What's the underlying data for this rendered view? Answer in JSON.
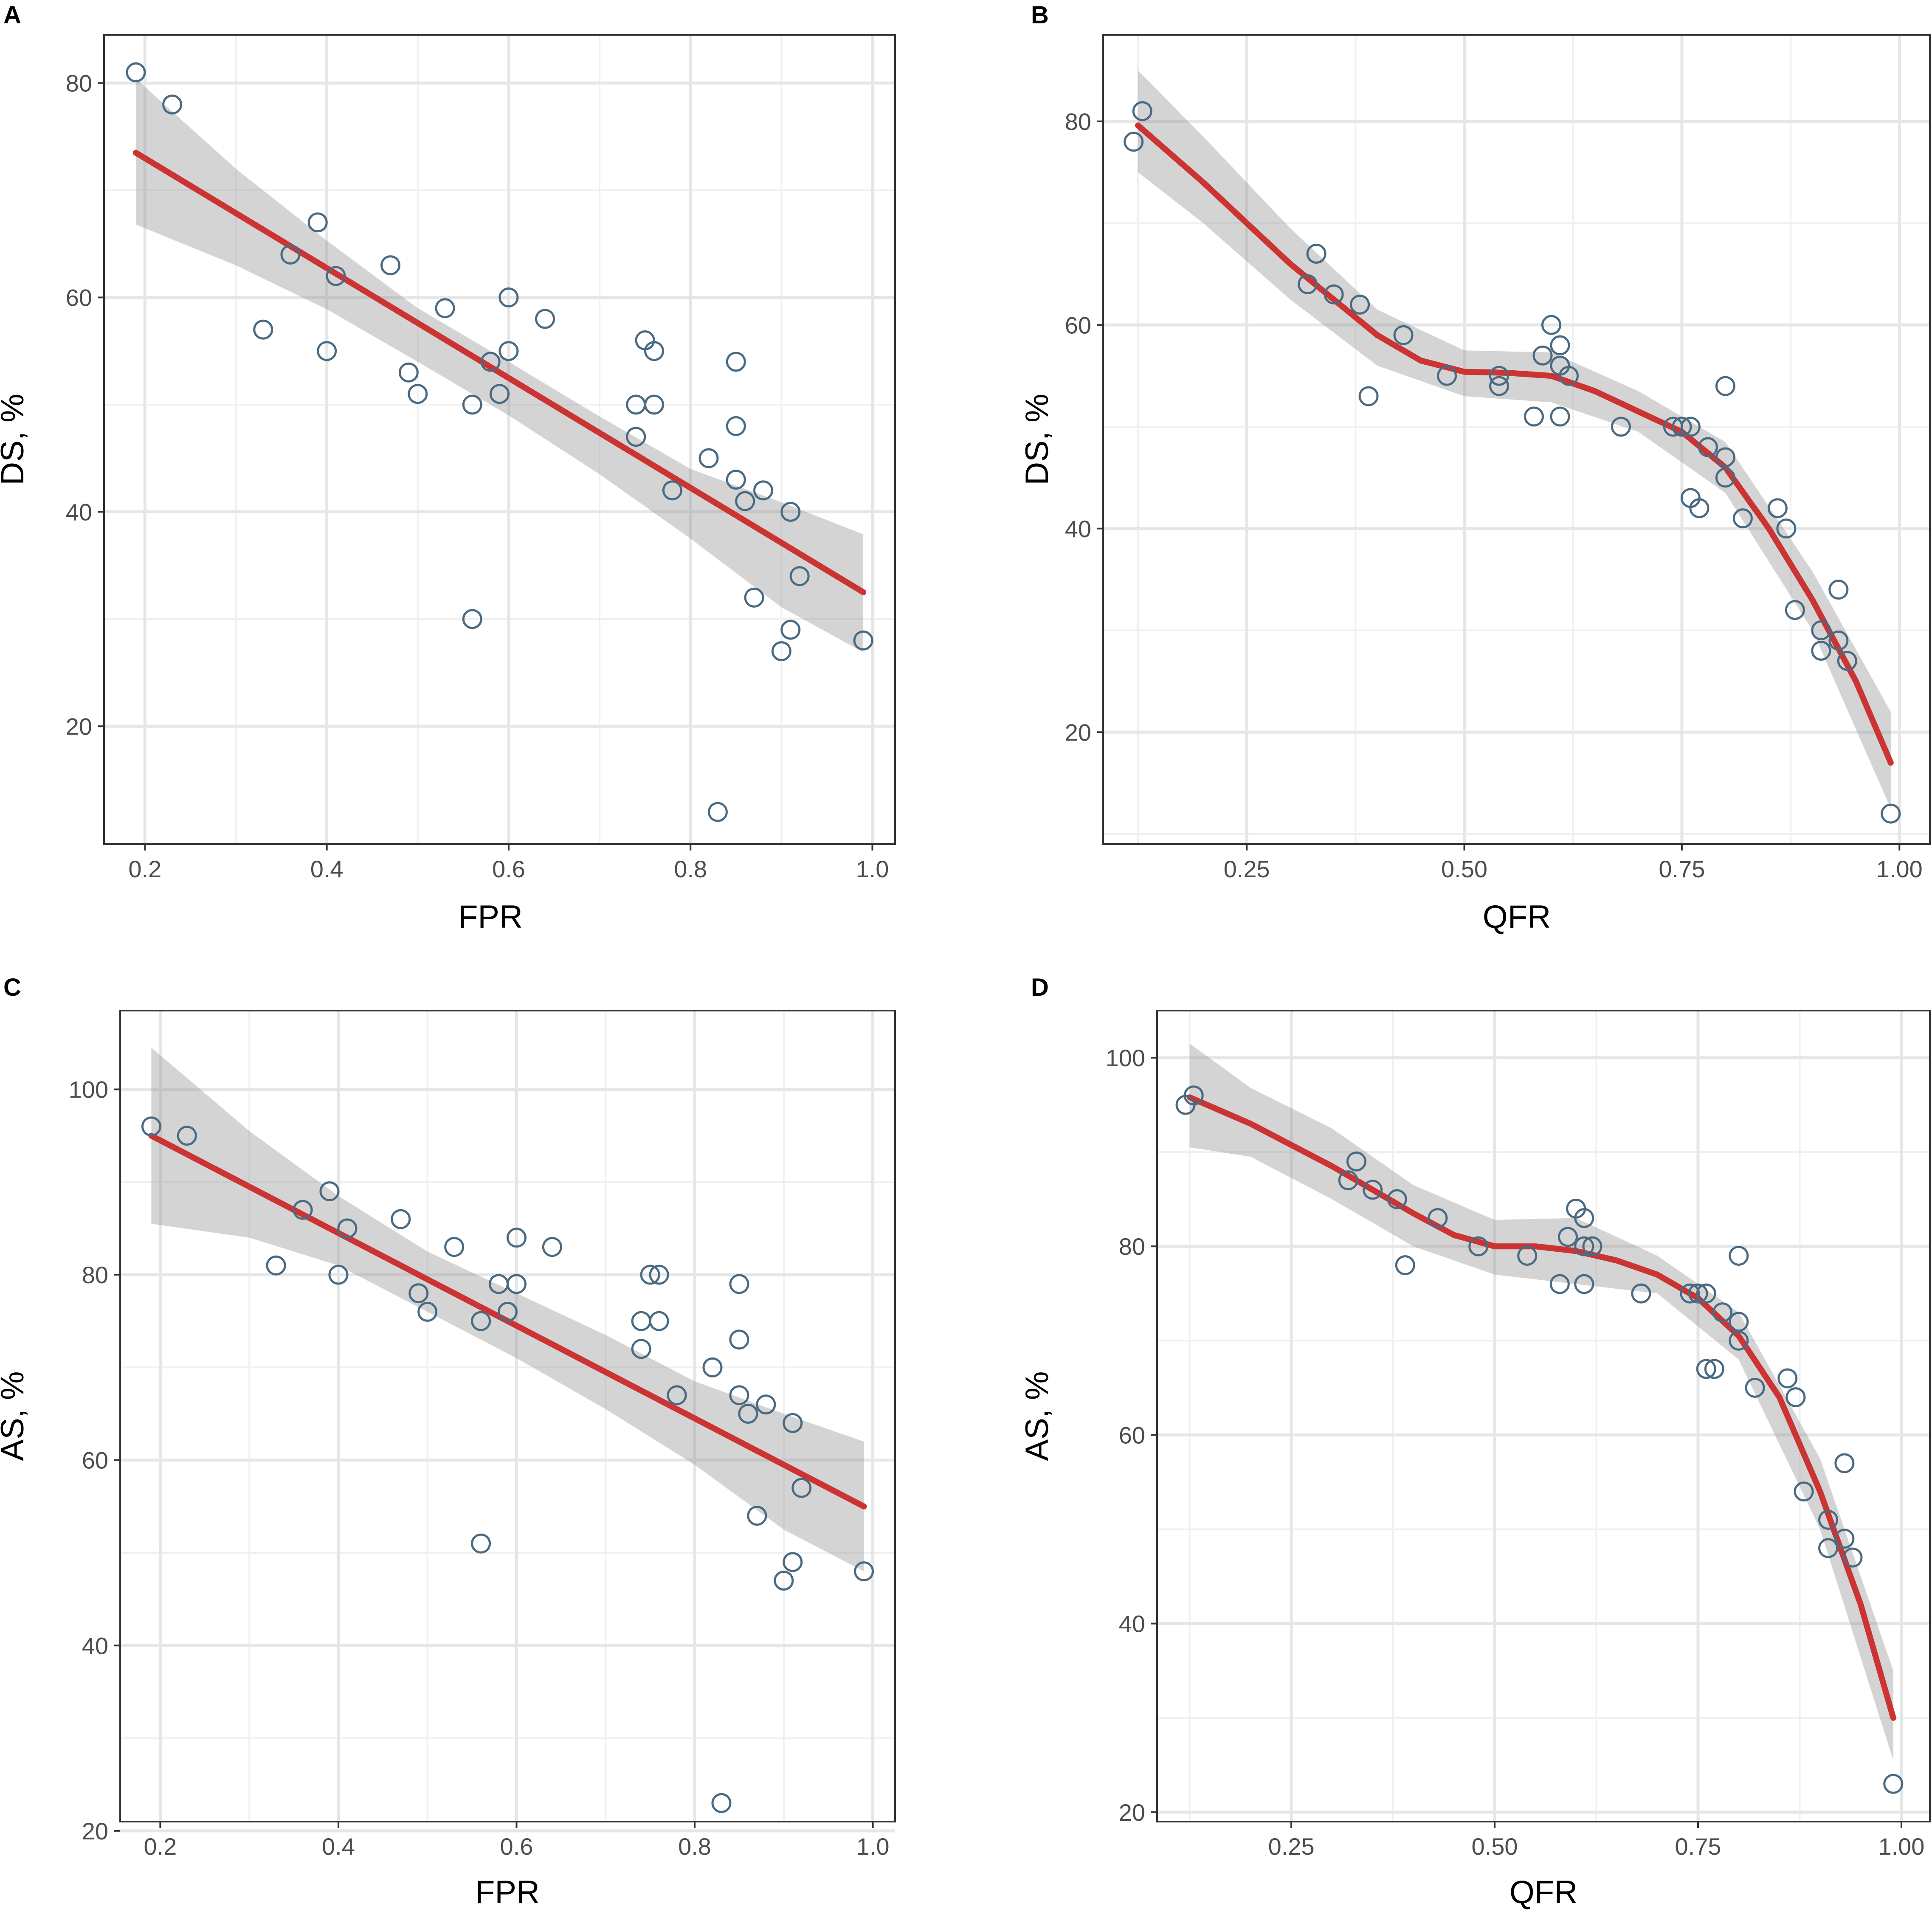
{
  "colors": {
    "fit_line": "#cc3333",
    "band": "#999999",
    "points": "#4a6a82",
    "grid": "#e6e6e6",
    "frame": "#333333"
  },
  "chart_data": [
    {
      "panel": "A",
      "type": "scatter",
      "xlabel": "FPR",
      "ylabel": "DS, %",
      "xlim": [
        0.155,
        1.025
      ],
      "ylim": [
        9,
        84.5
      ],
      "xticks": [
        0.2,
        0.4,
        0.6,
        0.8,
        1.0
      ],
      "xtick_labels": [
        "0.2",
        "0.4",
        "0.6",
        "0.8",
        "1.0"
      ],
      "yticks": [
        20,
        40,
        60,
        80
      ],
      "ytick_labels": [
        "20",
        "40",
        "60",
        "80"
      ],
      "xminor": [
        0.3,
        0.5,
        0.7,
        0.9
      ],
      "yminor": [
        30,
        50,
        70
      ],
      "points": [
        [
          0.19,
          81
        ],
        [
          0.23,
          78
        ],
        [
          0.33,
          57
        ],
        [
          0.36,
          64
        ],
        [
          0.39,
          67
        ],
        [
          0.4,
          55
        ],
        [
          0.41,
          62
        ],
        [
          0.47,
          63
        ],
        [
          0.49,
          53
        ],
        [
          0.5,
          51
        ],
        [
          0.53,
          59
        ],
        [
          0.56,
          50
        ],
        [
          0.56,
          30
        ],
        [
          0.58,
          54
        ],
        [
          0.59,
          51
        ],
        [
          0.6,
          60
        ],
        [
          0.6,
          55
        ],
        [
          0.64,
          58
        ],
        [
          0.74,
          50
        ],
        [
          0.74,
          47
        ],
        [
          0.75,
          56
        ],
        [
          0.76,
          55
        ],
        [
          0.76,
          50
        ],
        [
          0.78,
          42
        ],
        [
          0.82,
          45
        ],
        [
          0.83,
          12
        ],
        [
          0.85,
          54
        ],
        [
          0.85,
          48
        ],
        [
          0.85,
          43
        ],
        [
          0.86,
          41
        ],
        [
          0.87,
          32
        ],
        [
          0.88,
          42
        ],
        [
          0.9,
          27
        ],
        [
          0.91,
          40
        ],
        [
          0.91,
          29
        ],
        [
          0.92,
          34
        ],
        [
          0.99,
          28
        ]
      ],
      "fit": [
        [
          0.19,
          73.5
        ],
        [
          0.99,
          32.5
        ]
      ],
      "band_upper": [
        [
          0.19,
          80.4
        ],
        [
          0.3,
          72.0
        ],
        [
          0.4,
          65.3
        ],
        [
          0.5,
          59.0
        ],
        [
          0.6,
          54.0
        ],
        [
          0.7,
          48.9
        ],
        [
          0.8,
          44.0
        ],
        [
          0.9,
          40.9
        ],
        [
          0.99,
          37.9
        ]
      ],
      "band_lower": [
        [
          0.19,
          66.8
        ],
        [
          0.3,
          63.0
        ],
        [
          0.4,
          58.9
        ],
        [
          0.5,
          54.0
        ],
        [
          0.6,
          49.0
        ],
        [
          0.7,
          43.5
        ],
        [
          0.8,
          37.5
        ],
        [
          0.9,
          31.1
        ],
        [
          0.99,
          26.9
        ]
      ]
    },
    {
      "panel": "B",
      "type": "scatter",
      "xlabel": "QFR",
      "ylabel": "DS, %",
      "xlim": [
        0.085,
        1.035
      ],
      "ylim": [
        9,
        88.5
      ],
      "xticks": [
        0.25,
        0.5,
        0.75,
        1.0
      ],
      "xtick_labels": [
        "0.25",
        "0.50",
        "0.75",
        "1.00"
      ],
      "yticks": [
        20,
        40,
        60,
        80
      ],
      "ytick_labels": [
        "20",
        "40",
        "60",
        "80"
      ],
      "xminor": [
        0.125,
        0.375,
        0.625,
        0.875
      ],
      "yminor": [
        10,
        30,
        50,
        70
      ],
      "points": [
        [
          0.12,
          78
        ],
        [
          0.13,
          81
        ],
        [
          0.32,
          64
        ],
        [
          0.33,
          67
        ],
        [
          0.35,
          63
        ],
        [
          0.38,
          62
        ],
        [
          0.39,
          53
        ],
        [
          0.43,
          59
        ],
        [
          0.48,
          55
        ],
        [
          0.54,
          54
        ],
        [
          0.54,
          55
        ],
        [
          0.58,
          51
        ],
        [
          0.59,
          57
        ],
        [
          0.6,
          60
        ],
        [
          0.61,
          58
        ],
        [
          0.61,
          56
        ],
        [
          0.61,
          51
        ],
        [
          0.62,
          55
        ],
        [
          0.68,
          50
        ],
        [
          0.74,
          50
        ],
        [
          0.75,
          50
        ],
        [
          0.76,
          50
        ],
        [
          0.76,
          43
        ],
        [
          0.77,
          42
        ],
        [
          0.78,
          48
        ],
        [
          0.8,
          54
        ],
        [
          0.8,
          47
        ],
        [
          0.8,
          45
        ],
        [
          0.82,
          41
        ],
        [
          0.86,
          42
        ],
        [
          0.87,
          40
        ],
        [
          0.88,
          32
        ],
        [
          0.91,
          30
        ],
        [
          0.91,
          28
        ],
        [
          0.93,
          34
        ],
        [
          0.93,
          29
        ],
        [
          0.94,
          27
        ],
        [
          0.99,
          12
        ]
      ],
      "fit": [
        [
          0.125,
          79.6
        ],
        [
          0.2,
          74.0
        ],
        [
          0.3,
          66.0
        ],
        [
          0.4,
          59.0
        ],
        [
          0.45,
          56.5
        ],
        [
          0.5,
          55.4
        ],
        [
          0.55,
          55.3
        ],
        [
          0.6,
          55.0
        ],
        [
          0.65,
          53.5
        ],
        [
          0.7,
          51.5
        ],
        [
          0.75,
          49.5
        ],
        [
          0.8,
          46.0
        ],
        [
          0.85,
          40.0
        ],
        [
          0.9,
          33.0
        ],
        [
          0.95,
          25.0
        ],
        [
          0.99,
          17.0
        ]
      ],
      "band_upper": [
        [
          0.125,
          85.0
        ],
        [
          0.2,
          78.5
        ],
        [
          0.3,
          69.5
        ],
        [
          0.4,
          61.5
        ],
        [
          0.5,
          57.5
        ],
        [
          0.6,
          57.3
        ],
        [
          0.7,
          53.5
        ],
        [
          0.8,
          48.5
        ],
        [
          0.9,
          35.8
        ],
        [
          0.99,
          22.0
        ]
      ],
      "band_lower": [
        [
          0.125,
          75.0
        ],
        [
          0.2,
          70.0
        ],
        [
          0.3,
          62.5
        ],
        [
          0.4,
          56.0
        ],
        [
          0.5,
          53.0
        ],
        [
          0.6,
          52.4
        ],
        [
          0.7,
          49.5
        ],
        [
          0.8,
          43.5
        ],
        [
          0.9,
          30.0
        ],
        [
          0.99,
          12.5
        ]
      ]
    },
    {
      "panel": "C",
      "type": "scatter",
      "xlabel": "FPR",
      "ylabel": "AS, %",
      "xlim": [
        0.155,
        1.025
      ],
      "ylim": [
        21,
        108.5
      ],
      "xticks": [
        0.2,
        0.4,
        0.6,
        0.8,
        1.0
      ],
      "xtick_labels": [
        "0.2",
        "0.4",
        "0.6",
        "0.8",
        "1.0"
      ],
      "yticks": [
        20,
        40,
        60,
        80,
        100
      ],
      "ytick_labels": [
        "20",
        "40",
        "60",
        "80",
        "100"
      ],
      "xminor": [
        0.3,
        0.5,
        0.7,
        0.9
      ],
      "yminor": [
        30,
        50,
        70,
        90
      ],
      "points": [
        [
          0.19,
          96
        ],
        [
          0.23,
          95
        ],
        [
          0.33,
          81
        ],
        [
          0.36,
          87
        ],
        [
          0.39,
          89
        ],
        [
          0.4,
          80
        ],
        [
          0.41,
          85
        ],
        [
          0.47,
          86
        ],
        [
          0.49,
          78
        ],
        [
          0.5,
          76
        ],
        [
          0.53,
          83
        ],
        [
          0.56,
          75
        ],
        [
          0.56,
          51
        ],
        [
          0.58,
          79
        ],
        [
          0.59,
          76
        ],
        [
          0.6,
          84
        ],
        [
          0.6,
          79
        ],
        [
          0.64,
          83
        ],
        [
          0.74,
          75
        ],
        [
          0.74,
          72
        ],
        [
          0.75,
          80
        ],
        [
          0.76,
          80
        ],
        [
          0.76,
          75
        ],
        [
          0.78,
          67
        ],
        [
          0.82,
          70
        ],
        [
          0.83,
          23
        ],
        [
          0.85,
          79
        ],
        [
          0.85,
          73
        ],
        [
          0.85,
          67
        ],
        [
          0.86,
          65
        ],
        [
          0.87,
          54
        ],
        [
          0.88,
          66
        ],
        [
          0.9,
          47
        ],
        [
          0.91,
          64
        ],
        [
          0.91,
          49
        ],
        [
          0.92,
          57
        ],
        [
          0.99,
          48
        ]
      ],
      "fit": [
        [
          0.19,
          95.0
        ],
        [
          0.99,
          55.0
        ]
      ],
      "band_upper": [
        [
          0.19,
          104.5
        ],
        [
          0.3,
          95.5
        ],
        [
          0.4,
          88.5
        ],
        [
          0.5,
          82.5
        ],
        [
          0.6,
          78.0
        ],
        [
          0.7,
          73.5
        ],
        [
          0.8,
          68.5
        ],
        [
          0.9,
          65.0
        ],
        [
          0.99,
          62.0
        ]
      ],
      "band_lower": [
        [
          0.19,
          85.5
        ],
        [
          0.3,
          84.0
        ],
        [
          0.4,
          81.0
        ],
        [
          0.5,
          76.0
        ],
        [
          0.6,
          71.0
        ],
        [
          0.7,
          65.5
        ],
        [
          0.8,
          59.5
        ],
        [
          0.9,
          52.5
        ],
        [
          0.99,
          48.0
        ]
      ]
    },
    {
      "panel": "D",
      "type": "scatter",
      "xlabel": "QFR",
      "ylabel": "AS, %",
      "xlim": [
        0.085,
        1.035
      ],
      "ylim": [
        19,
        105
      ],
      "xticks": [
        0.25,
        0.5,
        0.75,
        1.0
      ],
      "xtick_labels": [
        "0.25",
        "0.50",
        "0.75",
        "1.00"
      ],
      "yticks": [
        20,
        40,
        60,
        80,
        100
      ],
      "ytick_labels": [
        "20",
        "40",
        "60",
        "80",
        "100"
      ],
      "xminor": [
        0.125,
        0.375,
        0.625,
        0.875
      ],
      "yminor": [
        30,
        50,
        70,
        90
      ],
      "points": [
        [
          0.12,
          95
        ],
        [
          0.13,
          96
        ],
        [
          0.32,
          87
        ],
        [
          0.33,
          89
        ],
        [
          0.35,
          86
        ],
        [
          0.38,
          85
        ],
        [
          0.39,
          78
        ],
        [
          0.43,
          83
        ],
        [
          0.48,
          80
        ],
        [
          0.54,
          79
        ],
        [
          0.58,
          76
        ],
        [
          0.59,
          81
        ],
        [
          0.6,
          84
        ],
        [
          0.61,
          83
        ],
        [
          0.61,
          80
        ],
        [
          0.61,
          76
        ],
        [
          0.62,
          80
        ],
        [
          0.68,
          75
        ],
        [
          0.74,
          75
        ],
        [
          0.75,
          75
        ],
        [
          0.76,
          75
        ],
        [
          0.76,
          67
        ],
        [
          0.77,
          67
        ],
        [
          0.78,
          73
        ],
        [
          0.8,
          79
        ],
        [
          0.8,
          72
        ],
        [
          0.8,
          70
        ],
        [
          0.82,
          65
        ],
        [
          0.86,
          66
        ],
        [
          0.87,
          64
        ],
        [
          0.88,
          54
        ],
        [
          0.91,
          51
        ],
        [
          0.91,
          48
        ],
        [
          0.93,
          57
        ],
        [
          0.93,
          49
        ],
        [
          0.94,
          47
        ],
        [
          0.99,
          23
        ]
      ],
      "fit": [
        [
          0.125,
          95.8
        ],
        [
          0.2,
          93.0
        ],
        [
          0.3,
          88.5
        ],
        [
          0.4,
          83.5
        ],
        [
          0.45,
          81.2
        ],
        [
          0.5,
          80.0
        ],
        [
          0.55,
          80.0
        ],
        [
          0.6,
          79.5
        ],
        [
          0.65,
          78.5
        ],
        [
          0.7,
          77.0
        ],
        [
          0.75,
          74.5
        ],
        [
          0.8,
          70.5
        ],
        [
          0.85,
          64.0
        ],
        [
          0.9,
          54.0
        ],
        [
          0.95,
          42.0
        ],
        [
          0.99,
          30.0
        ]
      ],
      "band_upper": [
        [
          0.125,
          101.5
        ],
        [
          0.2,
          96.8
        ],
        [
          0.3,
          92.5
        ],
        [
          0.4,
          86.5
        ],
        [
          0.5,
          82.8
        ],
        [
          0.6,
          83.0
        ],
        [
          0.7,
          79.0
        ],
        [
          0.8,
          73.0
        ],
        [
          0.9,
          57.5
        ],
        [
          0.99,
          35.0
        ]
      ],
      "band_lower": [
        [
          0.125,
          90.5
        ],
        [
          0.2,
          89.5
        ],
        [
          0.3,
          85.0
        ],
        [
          0.4,
          80.0
        ],
        [
          0.5,
          77.0
        ],
        [
          0.6,
          76.0
        ],
        [
          0.7,
          75.0
        ],
        [
          0.8,
          68.0
        ],
        [
          0.9,
          50.0
        ],
        [
          0.99,
          25.5
        ]
      ]
    }
  ]
}
